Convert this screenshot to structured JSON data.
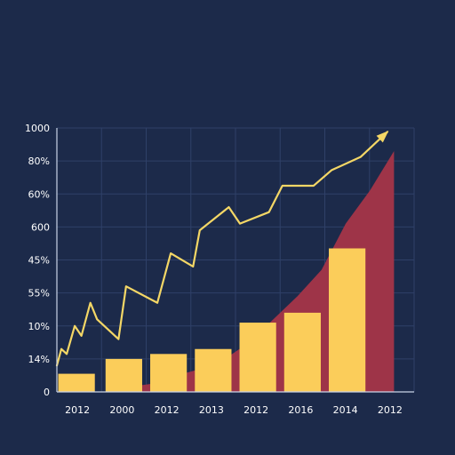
{
  "colors": {
    "background": "#1c2a4a",
    "grid": "#2f4068",
    "axis": "#c9d3e6",
    "bar": "#fbcd5a",
    "area": "#9e3448",
    "line": "#f4d766"
  },
  "chart_data": {
    "type": "bar",
    "title": "",
    "xlabel": "",
    "ylabel": "",
    "y_tick_labels": [
      "1000",
      "80%",
      "60%",
      "600",
      "45%",
      "55%",
      "10%",
      "14%",
      "0"
    ],
    "x_tick_labels": [
      "2012",
      "2000",
      "2012",
      "2013",
      "2012",
      "2016",
      "2014",
      "2012"
    ],
    "ylim": [
      0,
      8
    ],
    "grid": true,
    "legend": "none",
    "bars": {
      "values": [
        0.55,
        1.0,
        1.15,
        1.3,
        2.1,
        2.4,
        4.35
      ]
    },
    "area": {
      "values": [
        0.15,
        0.25,
        0.5,
        0.7,
        1.0,
        1.5,
        2.2,
        2.9,
        3.7,
        5.1,
        6.1,
        7.3
      ]
    },
    "line": {
      "x": [
        0,
        0.1,
        0.22,
        0.4,
        0.55,
        0.75,
        0.9,
        1.38,
        1.55,
        2.25,
        2.55,
        3.05,
        3.2,
        3.85,
        4.1,
        4.75,
        5.05,
        5.75,
        6.15,
        6.8,
        7.4
      ],
      "values": [
        0.8,
        1.3,
        1.15,
        2.0,
        1.7,
        2.7,
        2.2,
        1.6,
        3.2,
        2.7,
        4.2,
        3.8,
        4.9,
        5.6,
        5.1,
        5.45,
        6.25,
        6.25,
        6.72,
        7.12,
        7.88
      ]
    }
  }
}
